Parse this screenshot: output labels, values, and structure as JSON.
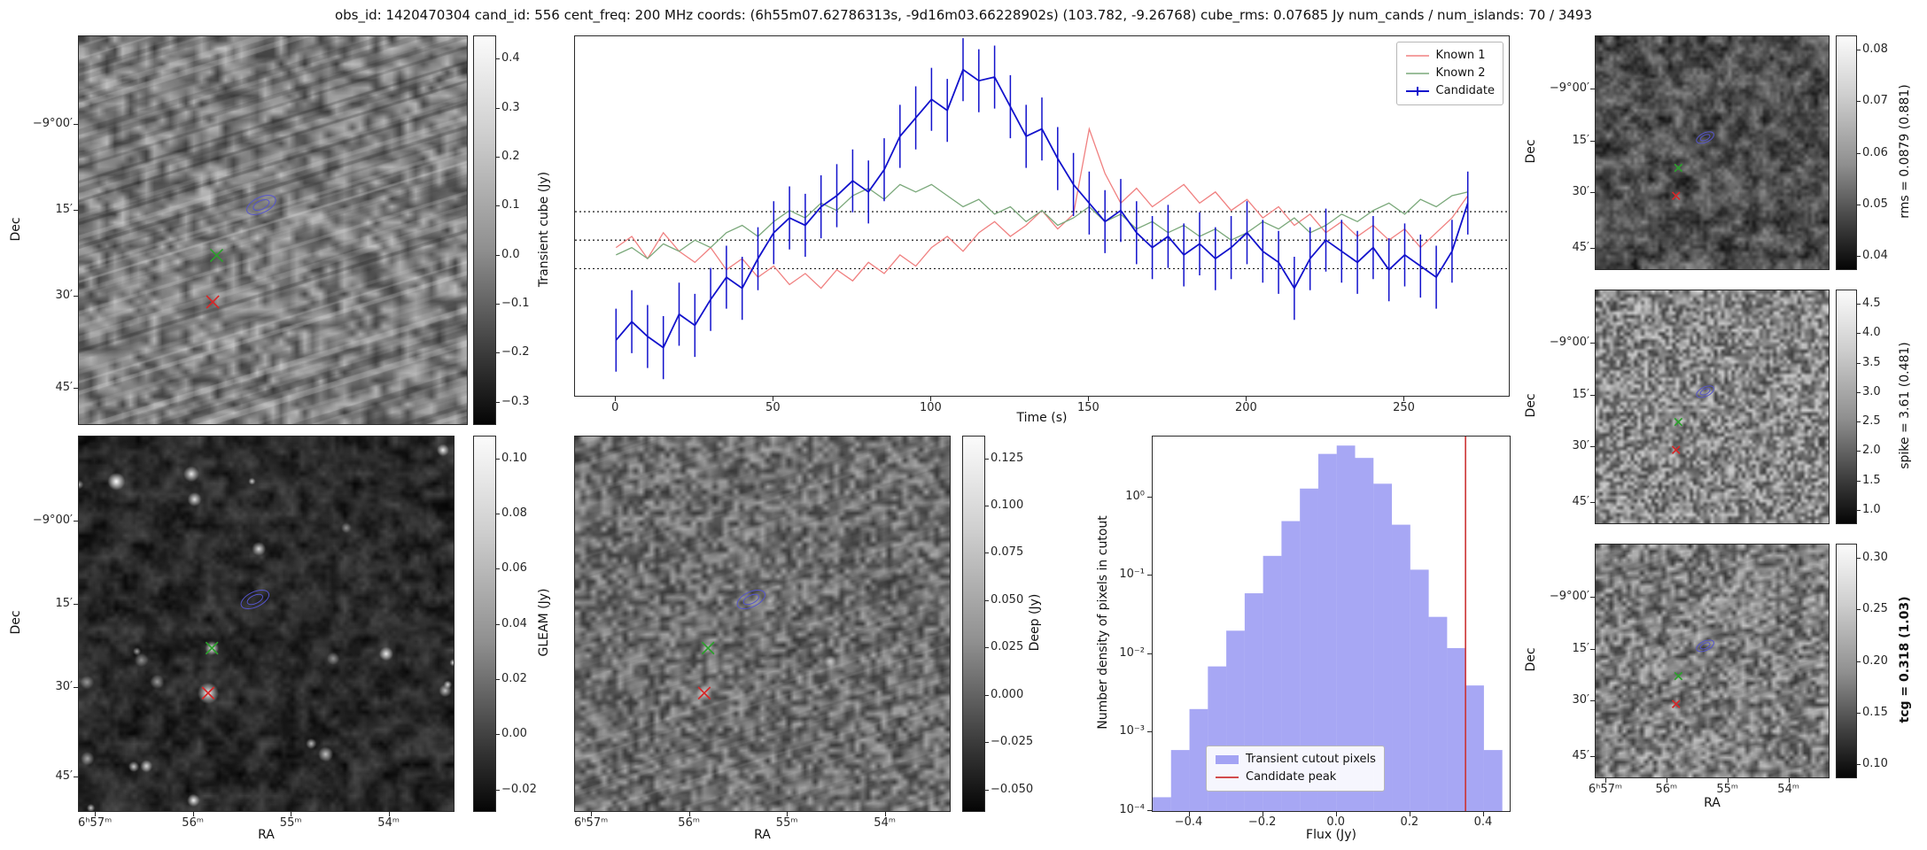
{
  "title": "obs_id: 1420470304 cand_id: 556 cent_freq: 200 MHz coords: (6h55m07.62786313s, -9d16m03.66228902s) (103.782, -9.26768) cube_rms: 0.07685 Jy num_cands / num_islands: 70 / 3493",
  "images": {
    "transient": {
      "ylabel": "Dec",
      "dec_ticks": [
        "−9°00′",
        "15′",
        "30′",
        "45′"
      ],
      "colorbar_label": "Transient cube (Jy)",
      "colorbar_ticks": [
        "0.4",
        "0.3",
        "0.2",
        "0.1",
        "0.0",
        "−0.1",
        "−0.2",
        "−0.3"
      ]
    },
    "gleam": {
      "ylabel": "Dec",
      "xlabel": "RA",
      "dec_ticks": [
        "−9°00′",
        "15′",
        "30′",
        "45′"
      ],
      "ra_ticks": [
        "6ʰ57ᵐ",
        "56ᵐ",
        "55ᵐ",
        "54ᵐ"
      ],
      "colorbar_label": "GLEAM (Jy)",
      "colorbar_ticks": [
        "0.10",
        "0.08",
        "0.06",
        "0.04",
        "0.02",
        "0.00",
        "−0.02"
      ]
    },
    "deep": {
      "xlabel": "RA",
      "ra_ticks": [
        "6ʰ57ᵐ",
        "56ᵐ",
        "55ᵐ",
        "54ᵐ"
      ],
      "colorbar_label": "Deep (Jy)",
      "colorbar_ticks": [
        "0.125",
        "0.100",
        "0.075",
        "0.050",
        "0.025",
        "0.000",
        "−0.025",
        "−0.050"
      ]
    },
    "rms": {
      "ylabel": "Dec",
      "dec_ticks": [
        "−9°00′",
        "15′",
        "30′",
        "45′"
      ],
      "colorbar_label": "rms = 0.0879 (0.881)",
      "colorbar_ticks": [
        "0.08",
        "0.07",
        "0.06",
        "0.05",
        "0.04"
      ]
    },
    "spike": {
      "ylabel": "Dec",
      "dec_ticks": [
        "−9°00′",
        "15′",
        "30′",
        "45′"
      ],
      "colorbar_label": "spike = 3.61 (0.481)",
      "colorbar_ticks": [
        "4.5",
        "4.0",
        "3.5",
        "3.0",
        "2.5",
        "2.0",
        "1.5",
        "1.0"
      ]
    },
    "tcg": {
      "ylabel": "Dec",
      "xlabel": "RA",
      "dec_ticks": [
        "−9°00′",
        "15′",
        "30′",
        "45′"
      ],
      "ra_ticks": [
        "6ʰ57ᵐ",
        "56ᵐ",
        "55ᵐ",
        "54ᵐ"
      ],
      "colorbar_label": "tcg = 0.318 (1.03)",
      "colorbar_ticks": [
        "0.30",
        "0.25",
        "0.20",
        "0.15",
        "0.10"
      ]
    }
  },
  "lightcurve": {
    "xlabel": "Time (s)",
    "xtick_labels": [
      "0",
      "50",
      "100",
      "150",
      "200",
      "250"
    ],
    "xtick_values": [
      0,
      50,
      100,
      150,
      200,
      250
    ],
    "legend": [
      "Known 1",
      "Known 2",
      "Candidate"
    ]
  },
  "histogram": {
    "xlabel": "Flux (Jy)",
    "ylabel": "Number density of pixels in cutout",
    "xtick_labels": [
      "−0.4",
      "−0.2",
      "0.0",
      "0.2",
      "0.4"
    ],
    "xtick_values": [
      -0.4,
      -0.2,
      0.0,
      0.2,
      0.4
    ],
    "ytick_labels": [
      "10⁻⁴",
      "10⁻³",
      "10⁻²",
      "10⁻¹",
      "10⁰"
    ],
    "ytick_exponents": [
      -4,
      -3,
      -2,
      -1,
      0
    ],
    "legend": [
      "Transient cutout pixels",
      "Candidate peak"
    ]
  },
  "overlay_markers": {
    "candidate_ellipse": {
      "x": 0.47,
      "y": 0.435
    },
    "green_x": {
      "x": 0.355,
      "y": 0.565
    },
    "red_x": {
      "x": 0.345,
      "y": 0.685
    }
  },
  "colors": {
    "known1": "#f08080",
    "known2": "#7aa87a",
    "candidate": "#1212cc",
    "histogram_fill": "rgba(95,95,235,0.55)",
    "peak_line": "#cc3333",
    "green_marker": "#2ca02c",
    "red_marker": "#d62728",
    "ellipse": "#5555cc",
    "threshold_line": "#000000"
  },
  "chart_data": [
    {
      "type": "line",
      "title": "",
      "xlabel": "Time (s)",
      "ylabel": "",
      "xlim": [
        -13,
        283
      ],
      "ylim": [
        -0.42,
        0.55
      ],
      "hlines": [
        0.07685,
        0.0,
        -0.07685
      ],
      "x": [
        0,
        5,
        10,
        15,
        20,
        25,
        30,
        35,
        40,
        45,
        50,
        55,
        60,
        65,
        70,
        75,
        80,
        85,
        90,
        95,
        100,
        105,
        110,
        115,
        120,
        125,
        130,
        135,
        140,
        145,
        150,
        155,
        160,
        165,
        170,
        175,
        180,
        185,
        190,
        195,
        200,
        205,
        210,
        215,
        220,
        225,
        230,
        235,
        240,
        245,
        250,
        255,
        260,
        265,
        270
      ],
      "series": [
        {
          "name": "Known 1",
          "values": [
            -0.02,
            0.01,
            -0.05,
            0.02,
            -0.03,
            -0.06,
            -0.02,
            -0.08,
            -0.05,
            -0.1,
            -0.07,
            -0.12,
            -0.09,
            -0.13,
            -0.08,
            -0.11,
            -0.06,
            -0.09,
            -0.04,
            -0.07,
            -0.02,
            0.01,
            -0.03,
            0.02,
            0.05,
            0.01,
            0.04,
            0.08,
            0.03,
            0.07,
            0.3,
            0.18,
            0.1,
            0.14,
            0.09,
            0.12,
            0.15,
            0.1,
            0.13,
            0.08,
            0.11,
            0.06,
            0.09,
            0.04,
            0.07,
            0.02,
            0.05,
            0.01,
            0.04,
            0.0,
            0.03,
            -0.02,
            0.02,
            0.06,
            0.12
          ]
        },
        {
          "name": "Known 2",
          "values": [
            -0.04,
            -0.02,
            -0.05,
            -0.01,
            -0.03,
            0.0,
            -0.02,
            0.02,
            0.04,
            0.01,
            0.05,
            0.08,
            0.06,
            0.1,
            0.08,
            0.12,
            0.14,
            0.11,
            0.15,
            0.13,
            0.15,
            0.12,
            0.09,
            0.11,
            0.07,
            0.09,
            0.05,
            0.08,
            0.04,
            0.06,
            0.09,
            0.05,
            0.07,
            0.03,
            0.05,
            0.02,
            0.04,
            0.01,
            0.03,
            0.0,
            0.02,
            0.05,
            0.03,
            0.06,
            0.02,
            0.04,
            0.07,
            0.05,
            0.08,
            0.1,
            0.07,
            0.11,
            0.09,
            0.12,
            0.13
          ]
        },
        {
          "name": "Candidate",
          "yerr": 0.085,
          "values": [
            -0.27,
            -0.22,
            -0.26,
            -0.29,
            -0.2,
            -0.23,
            -0.16,
            -0.1,
            -0.13,
            -0.05,
            0.02,
            0.06,
            0.04,
            0.09,
            0.12,
            0.16,
            0.13,
            0.19,
            0.28,
            0.33,
            0.38,
            0.35,
            0.46,
            0.43,
            0.44,
            0.36,
            0.28,
            0.3,
            0.22,
            0.15,
            0.1,
            0.05,
            0.08,
            0.02,
            -0.02,
            0.01,
            -0.04,
            -0.01,
            -0.05,
            -0.02,
            0.02,
            -0.03,
            -0.06,
            -0.13,
            -0.05,
            0.0,
            -0.03,
            -0.06,
            -0.02,
            -0.08,
            -0.04,
            -0.07,
            -0.1,
            -0.03,
            0.1
          ]
        }
      ],
      "legend_position": "upper right",
      "grid": false
    },
    {
      "type": "bar",
      "title": "",
      "xlabel": "Flux (Jy)",
      "ylabel": "Number density of pixels in cutout",
      "yscale": "log",
      "xlim": [
        -0.5,
        0.47
      ],
      "ylim": [
        0.0001,
        6
      ],
      "bin_width": 0.05,
      "bin_centers": [
        -0.475,
        -0.425,
        -0.375,
        -0.325,
        -0.275,
        -0.225,
        -0.175,
        -0.125,
        -0.075,
        -0.025,
        0.025,
        0.075,
        0.125,
        0.175,
        0.225,
        0.275,
        0.325,
        0.375,
        0.425
      ],
      "values": [
        0.00015,
        0.0006,
        0.002,
        0.007,
        0.02,
        0.06,
        0.18,
        0.5,
        1.3,
        3.6,
        4.6,
        3.2,
        1.5,
        0.45,
        0.12,
        0.03,
        0.012,
        0.004,
        0.0006
      ],
      "vline": {
        "x": 0.35,
        "label": "Candidate peak"
      },
      "legend_position": "lower left",
      "grid": false
    }
  ]
}
